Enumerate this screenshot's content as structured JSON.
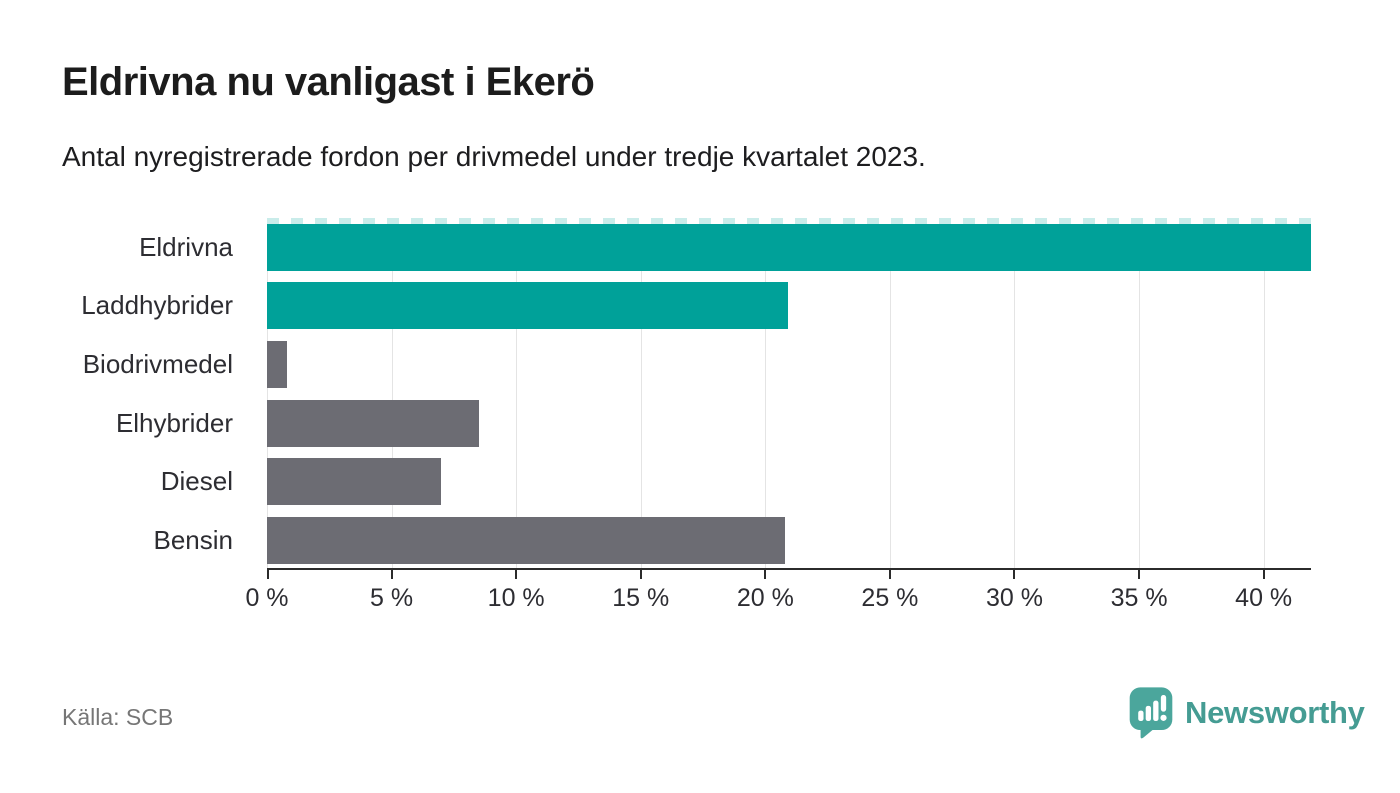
{
  "header": {
    "title": "Eldrivna nu vanligast i Ekerö",
    "subtitle": "Antal nyregistrerade fordon per drivmedel under tredje kvartalet 2023."
  },
  "footer": {
    "source": "Källa: SCB",
    "brand_name": "Newsworthy"
  },
  "colors": {
    "highlight_bar": "#00a199",
    "default_bar": "#6c6c73",
    "axis": "#2b2b2b",
    "grid": "#e4e4e4",
    "text": "#2d2d32",
    "muted": "#767676",
    "brand": "#459c93",
    "brand_icon": "#4ba69c"
  },
  "chart_data": {
    "type": "bar",
    "orientation": "horizontal",
    "title": "Eldrivna nu vanligast i Ekerö",
    "subtitle": "Antal nyregistrerade fordon per drivmedel under tredje kvartalet 2023.",
    "categories": [
      "Eldrivna",
      "Laddhybrider",
      "Biodrivmedel",
      "Elhybrider",
      "Diesel",
      "Bensin"
    ],
    "values": [
      41.9,
      20.9,
      0.8,
      8.5,
      7.0,
      20.8
    ],
    "bar_colors": [
      "#00a199",
      "#00a199",
      "#6c6c73",
      "#6c6c73",
      "#6c6c73",
      "#6c6c73"
    ],
    "xlabel": "",
    "ylabel": "",
    "xlim": [
      0,
      41.9
    ],
    "xticks": [
      0,
      5,
      10,
      15,
      20,
      25,
      30,
      35,
      40
    ],
    "xtick_labels": [
      "0 %",
      "5 %",
      "10 %",
      "15 %",
      "20 %",
      "25 %",
      "30 %",
      "35 %",
      "40 %"
    ],
    "grid": true,
    "legend": false,
    "max_bar_clipped_dashed_edge": true,
    "source": "Källa: SCB"
  }
}
